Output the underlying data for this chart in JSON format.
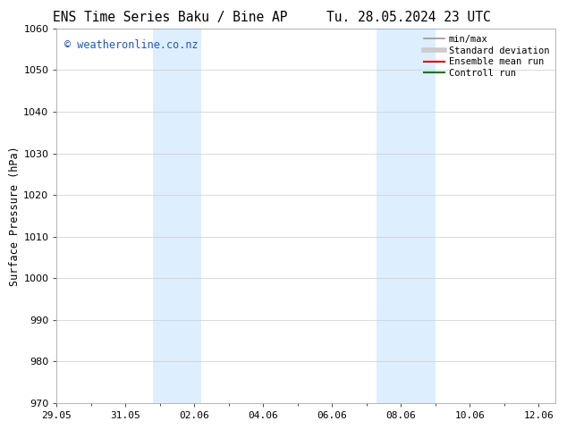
{
  "title_left": "ENS Time Series Baku / Bine AP",
  "title_right": "Tu. 28.05.2024 23 UTC",
  "ylabel": "Surface Pressure (hPa)",
  "ylim": [
    970,
    1060
  ],
  "yticks": [
    970,
    980,
    990,
    1000,
    1010,
    1020,
    1030,
    1040,
    1050,
    1060
  ],
  "xtick_labels": [
    "29.05",
    "31.05",
    "02.06",
    "04.06",
    "06.06",
    "08.06",
    "10.06",
    "12.06"
  ],
  "xtick_positions_days": [
    0,
    2,
    4,
    6,
    8,
    10,
    12,
    14
  ],
  "xlim_days": [
    0,
    14.5
  ],
  "shaded_regions": [
    {
      "start_day": 2.8,
      "end_day": 4.2
    },
    {
      "start_day": 9.3,
      "end_day": 11.0
    }
  ],
  "shade_color": "#ddeeff",
  "watermark_text": "© weatheronline.co.nz",
  "watermark_color": "#2255bb",
  "legend_items": [
    {
      "label": "min/max",
      "color": "#999999",
      "lw": 1.2
    },
    {
      "label": "Standard deviation",
      "color": "#cccccc",
      "lw": 4.0
    },
    {
      "label": "Ensemble mean run",
      "color": "#dd0000",
      "lw": 1.5
    },
    {
      "label": "Controll run",
      "color": "#007700",
      "lw": 1.5
    }
  ],
  "bg_color": "#ffffff",
  "title_fontsize": 10.5,
  "axis_label_fontsize": 8.5,
  "tick_fontsize": 8,
  "watermark_fontsize": 8.5,
  "legend_fontsize": 7.5
}
